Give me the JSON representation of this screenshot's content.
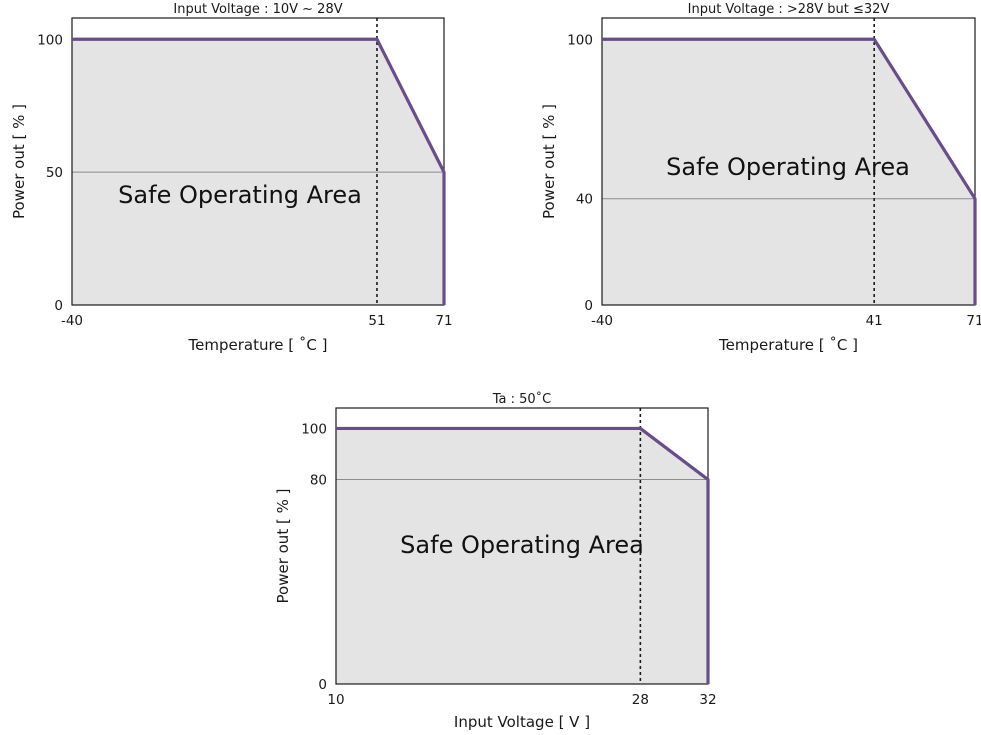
{
  "colors": {
    "curve": "#6a4c8c",
    "area_fill": "#e4e4e4",
    "frame": "#1a1a1a",
    "grid": "#8c8c8c",
    "text": "#1a1a1a"
  },
  "chart_data": [
    {
      "type": "area",
      "title": "Input Voltage : 10V ~ 28V",
      "xlabel": "Temperature [ ˚C ]",
      "ylabel": "Power out [ % ]",
      "annotation": "Safe Operating Area",
      "xlim": [
        -40,
        71
      ],
      "ylim": [
        0,
        108
      ],
      "x_ticks": [
        {
          "value": -40,
          "label": "-40"
        },
        {
          "value": 51,
          "label": "51"
        },
        {
          "value": 71,
          "label": "71"
        }
      ],
      "y_ticks": [
        {
          "value": 0,
          "label": "0"
        },
        {
          "value": 50,
          "label": "50"
        },
        {
          "value": 100,
          "label": "100"
        }
      ],
      "reference_lines": {
        "vertical_dotted": 51,
        "horizontal": 50
      },
      "points": [
        {
          "x": -40,
          "y": 100
        },
        {
          "x": 51,
          "y": 100
        },
        {
          "x": 71,
          "y": 50
        },
        {
          "x": 71,
          "y": 0
        }
      ]
    },
    {
      "type": "area",
      "title": "Input Voltage : >28V but ≤32V",
      "xlabel": "Temperature [ ˚C ]",
      "ylabel": "Power out [ % ]",
      "annotation": "Safe Operating Area",
      "xlim": [
        -40,
        71
      ],
      "ylim": [
        0,
        108
      ],
      "x_ticks": [
        {
          "value": -40,
          "label": "-40"
        },
        {
          "value": 41,
          "label": "41"
        },
        {
          "value": 71,
          "label": "71"
        }
      ],
      "y_ticks": [
        {
          "value": 0,
          "label": "0"
        },
        {
          "value": 40,
          "label": "40"
        },
        {
          "value": 100,
          "label": "100"
        }
      ],
      "reference_lines": {
        "vertical_dotted": 41,
        "horizontal": 40
      },
      "points": [
        {
          "x": -40,
          "y": 100
        },
        {
          "x": 41,
          "y": 100
        },
        {
          "x": 71,
          "y": 40
        },
        {
          "x": 71,
          "y": 0
        }
      ]
    },
    {
      "type": "area",
      "title": "Ta : 50˚C",
      "xlabel": "Input Voltage [ V ]",
      "ylabel": "Power out [ % ]",
      "annotation": "Safe Operating Area",
      "xlim": [
        10,
        32
      ],
      "ylim": [
        0,
        108
      ],
      "x_ticks": [
        {
          "value": 10,
          "label": "10"
        },
        {
          "value": 28,
          "label": "28"
        },
        {
          "value": 32,
          "label": "32"
        }
      ],
      "y_ticks": [
        {
          "value": 0,
          "label": "0"
        },
        {
          "value": 80,
          "label": "80"
        },
        {
          "value": 100,
          "label": "100"
        }
      ],
      "reference_lines": {
        "vertical_dotted": 28,
        "horizontal": 80
      },
      "points": [
        {
          "x": 10,
          "y": 100
        },
        {
          "x": 28,
          "y": 100
        },
        {
          "x": 32,
          "y": 80
        },
        {
          "x": 32,
          "y": 0
        }
      ]
    }
  ]
}
